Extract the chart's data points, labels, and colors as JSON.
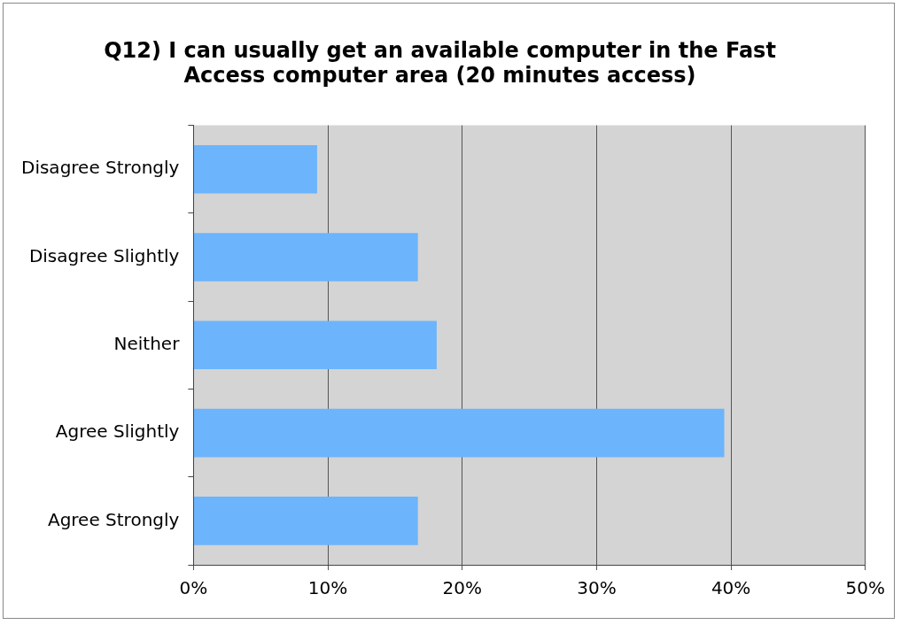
{
  "chart_data": {
    "type": "bar",
    "orientation": "horizontal",
    "title": "Q12) I can usually get an available computer in the Fast Access computer area (20 minutes access)",
    "categories": [
      "Disagree Strongly",
      "Disagree Slightly",
      "Neither",
      "Agree Slightly",
      "Agree Strongly"
    ],
    "values": [
      9.2,
      16.7,
      18.1,
      39.5,
      16.7
    ],
    "color": "#6cb4fc",
    "xlim": [
      0,
      50
    ],
    "xticks": [
      {
        "value": 0,
        "label": "0%"
      },
      {
        "value": 10,
        "label": "10%"
      },
      {
        "value": 20,
        "label": "20%"
      },
      {
        "value": 30,
        "label": "30%"
      },
      {
        "value": 40,
        "label": "40%"
      },
      {
        "value": 50,
        "label": "50%"
      }
    ],
    "grid": "x",
    "legend": false
  }
}
